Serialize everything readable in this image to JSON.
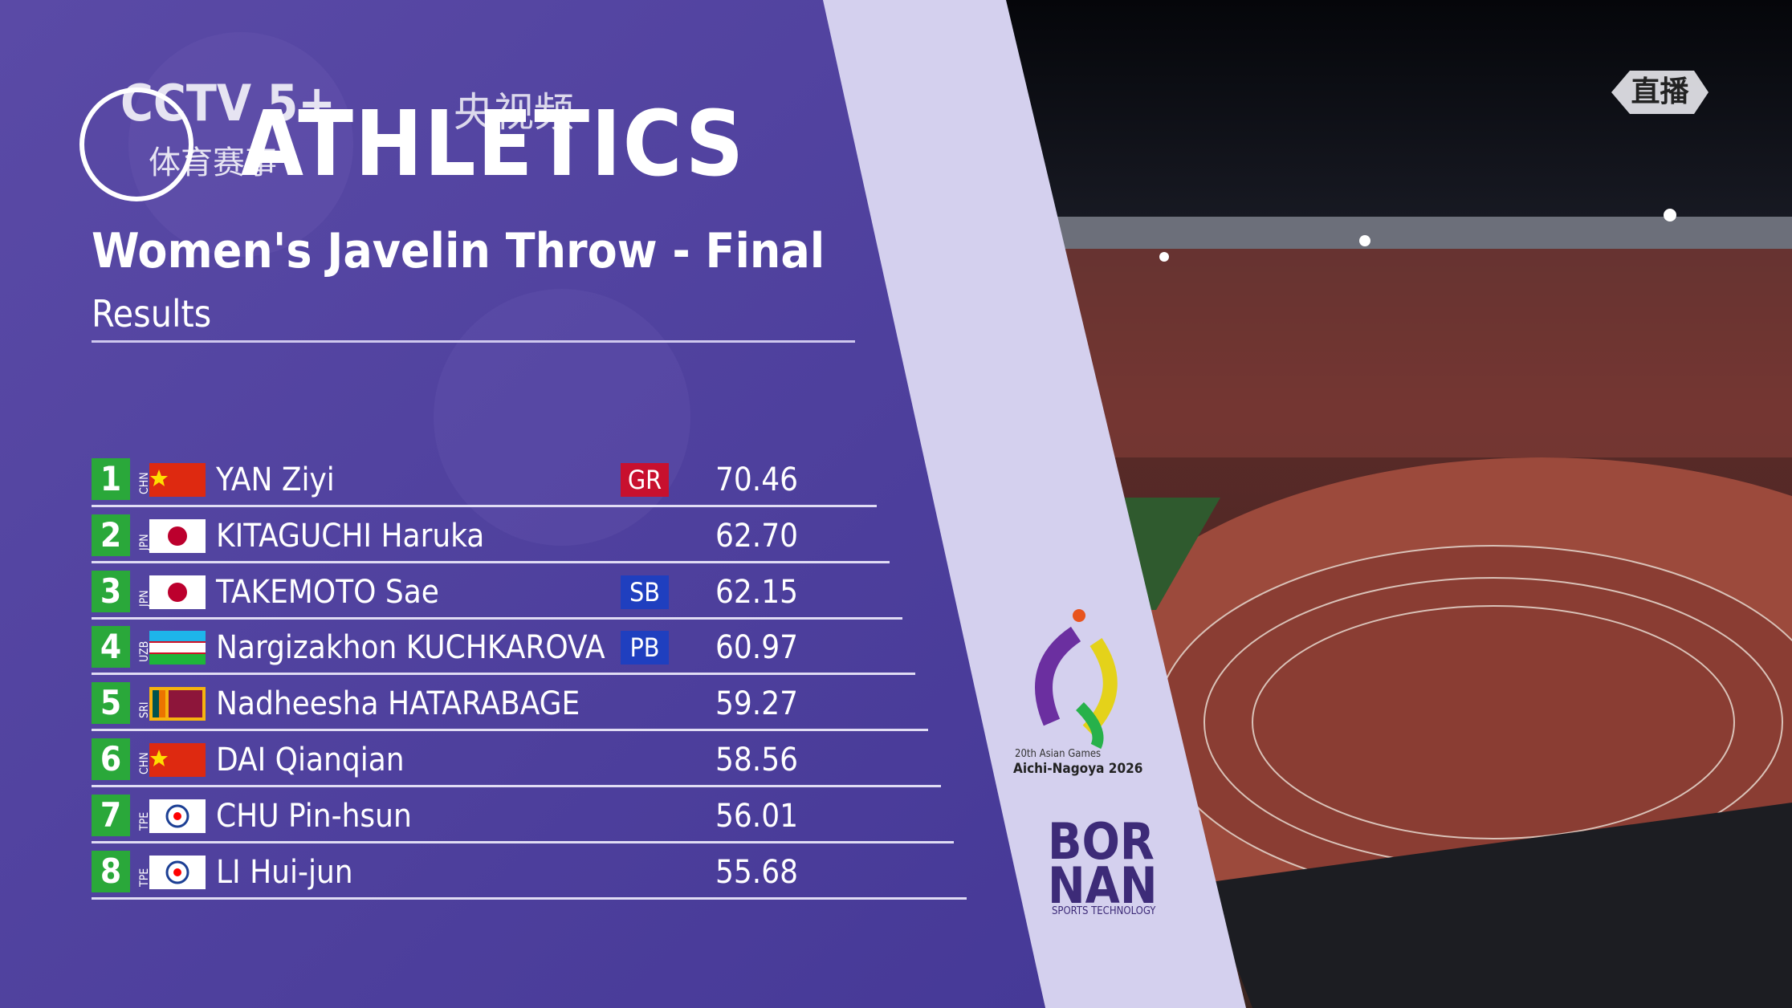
{
  "broadcast": {
    "channel": "CCTV 5+",
    "channel_sub": "体育赛事",
    "app": "央视频",
    "live": "直播"
  },
  "header": {
    "sport": "ATHLETICS",
    "title": "Women's Javelin Throw - Final",
    "subtitle": "Results"
  },
  "results": [
    {
      "rank": 1,
      "country": "CHN",
      "name": "YAN Ziyi",
      "record": "GR",
      "mark": "70.46"
    },
    {
      "rank": 2,
      "country": "JPN",
      "name": "KITAGUCHI Haruka",
      "record": null,
      "mark": "62.70"
    },
    {
      "rank": 3,
      "country": "JPN",
      "name": "TAKEMOTO Sae",
      "record": "SB",
      "mark": "62.15"
    },
    {
      "rank": 4,
      "country": "UZB",
      "name": "Nargizakhon KUCHKAROVA",
      "record": "PB",
      "mark": "60.97"
    },
    {
      "rank": 5,
      "country": "SRI",
      "name": "Nadheesha HATARABAGE",
      "record": null,
      "mark": "59.27"
    },
    {
      "rank": 6,
      "country": "CHN",
      "name": "DAI Qianqian",
      "record": null,
      "mark": "58.56"
    },
    {
      "rank": 7,
      "country": "TPE",
      "name": "CHU Pin-hsun",
      "record": null,
      "mark": "56.01"
    },
    {
      "rank": 8,
      "country": "TPE",
      "name": "LI Hui-jun",
      "record": null,
      "mark": "55.68"
    }
  ],
  "sponsors": {
    "games_line1": "20th Asian Games",
    "games_line2": "Aichi-Nagoya 2026",
    "brand_line1": "BOR",
    "brand_line2": "NAN",
    "brand_tagline": "SPORTS TECHNOLOGY"
  }
}
